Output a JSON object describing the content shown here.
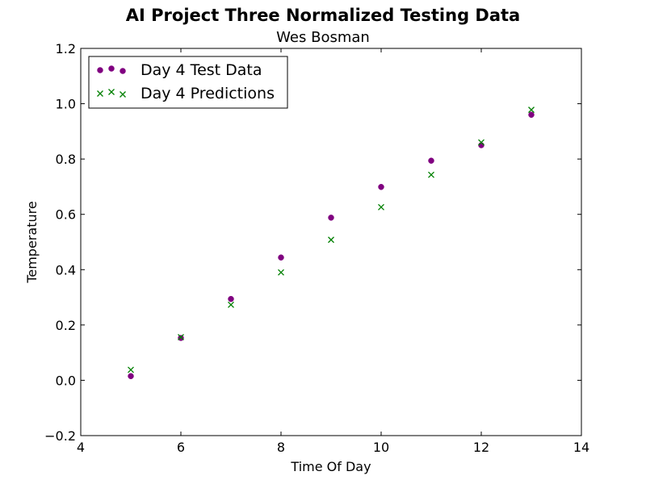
{
  "chart_data": {
    "type": "scatter",
    "title": "AI Project Three Normalized Testing Data",
    "subtitle": "Wes Bosman",
    "xlabel": "Time Of Day",
    "ylabel": "Temperature",
    "xlim": [
      4,
      14
    ],
    "ylim": [
      -0.2,
      1.2
    ],
    "xticks": [
      "4",
      "6",
      "8",
      "10",
      "12",
      "14"
    ],
    "yticks": [
      "−0.2",
      "0.0",
      "0.2",
      "0.4",
      "0.6",
      "0.8",
      "1.0",
      "1.2"
    ],
    "grid": false,
    "legend_position": "top-left",
    "series": [
      {
        "name": "Day 4 Test Data",
        "marker": "circle",
        "color": "#800080",
        "points": [
          {
            "x": 5,
            "y": 0.015
          },
          {
            "x": 6,
            "y": 0.153
          },
          {
            "x": 7,
            "y": 0.294
          },
          {
            "x": 8,
            "y": 0.444
          },
          {
            "x": 9,
            "y": 0.588
          },
          {
            "x": 10,
            "y": 0.699
          },
          {
            "x": 11,
            "y": 0.794
          },
          {
            "x": 12,
            "y": 0.85
          },
          {
            "x": 13,
            "y": 0.96
          }
        ]
      },
      {
        "name": "Day 4 Predictions",
        "marker": "x",
        "color": "#008000",
        "points": [
          {
            "x": 5,
            "y": 0.038
          },
          {
            "x": 6,
            "y": 0.156
          },
          {
            "x": 7,
            "y": 0.273
          },
          {
            "x": 8,
            "y": 0.39
          },
          {
            "x": 9,
            "y": 0.508
          },
          {
            "x": 10,
            "y": 0.626
          },
          {
            "x": 11,
            "y": 0.743
          },
          {
            "x": 12,
            "y": 0.86
          },
          {
            "x": 13,
            "y": 0.978
          }
        ]
      }
    ]
  }
}
